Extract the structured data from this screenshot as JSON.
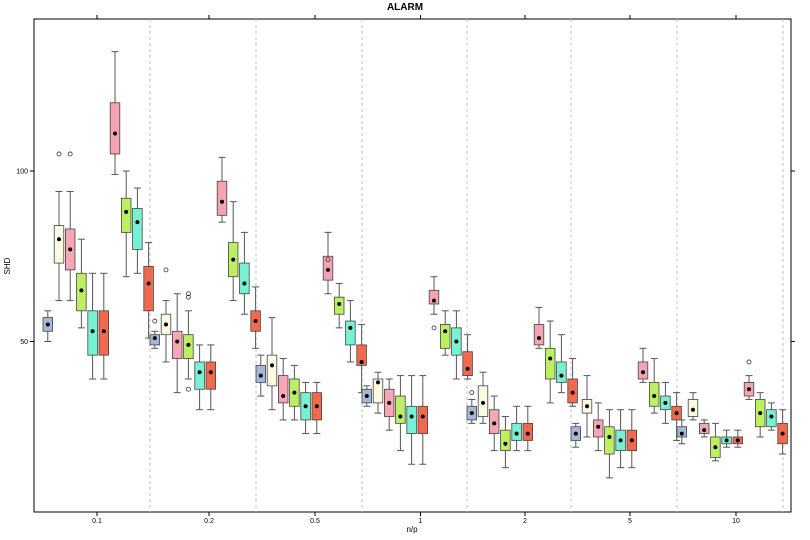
{
  "chart_data": {
    "type": "boxplot",
    "title": "ALARM",
    "xlabel": "n/p",
    "ylabel": "SHD",
    "ylim": [
      0,
      140
    ],
    "y_ticks": [
      50,
      100
    ],
    "categories": [
      "0.1",
      "0.2",
      "0.5",
      "1",
      "2",
      "5",
      "10"
    ],
    "grid": "vertical dashed separators",
    "series_colors": [
      "#a4b8d8",
      "#fbfbe4",
      "#f7a6b6",
      "#bdef62",
      "#76f2d2",
      "#f26a4e"
    ],
    "highlight_color": "#f3a3b2",
    "groups": [
      {
        "category": "0.1",
        "boxes": [
          {
            "color": "#a4b8d8",
            "whisker_low": 50,
            "q1": 53,
            "median": 55,
            "q3": 57,
            "whisker_high": 59,
            "mean": 55,
            "outliers": []
          },
          {
            "color": "#fbfbe4",
            "whisker_low": 62,
            "q1": 73,
            "median": 80,
            "q3": 84,
            "whisker_high": 94,
            "mean": 80,
            "outliers": [
              105
            ]
          },
          {
            "color": "#f7a6b6",
            "whisker_low": 62,
            "q1": 71,
            "median": 78,
            "q3": 83,
            "whisker_high": 94,
            "mean": 77,
            "outliers": [
              105
            ]
          },
          {
            "color": "#bdef62",
            "whisker_low": 54,
            "q1": 59,
            "median": 65,
            "q3": 70,
            "whisker_high": 80,
            "mean": 65,
            "outliers": []
          },
          {
            "color": "#76f2d2",
            "whisker_low": 39,
            "q1": 46,
            "median": 54,
            "q3": 59,
            "whisker_high": 70,
            "mean": 53,
            "outliers": []
          },
          {
            "color": "#f26a4e",
            "whisker_low": 39,
            "q1": 46,
            "median": 54,
            "q3": 59,
            "whisker_high": 70,
            "mean": 53,
            "outliers": []
          },
          {
            "color": "#f3a3b2",
            "whisker_low": 99,
            "q1": 105,
            "median": 111,
            "q3": 120,
            "whisker_high": 135,
            "mean": 111,
            "outliers": []
          },
          {
            "color": "#bdef62",
            "whisker_low": 69,
            "q1": 82,
            "median": 88,
            "q3": 92,
            "whisker_high": 100,
            "mean": 88,
            "outliers": []
          },
          {
            "color": "#76f2d2",
            "whisker_low": 70,
            "q1": 77,
            "median": 85,
            "q3": 89,
            "whisker_high": 95,
            "mean": 85,
            "outliers": []
          },
          {
            "color": "#f26a4e",
            "whisker_low": 51,
            "q1": 59,
            "median": 67,
            "q3": 72,
            "whisker_high": 79,
            "mean": 67,
            "outliers": []
          }
        ]
      },
      {
        "category": "0.2",
        "boxes": [
          {
            "color": "#a4b8d8",
            "whisker_low": 48,
            "q1": 49,
            "median": 51,
            "q3": 52,
            "whisker_high": 53,
            "mean": 51,
            "outliers": [
              56
            ]
          },
          {
            "color": "#fbfbe4",
            "whisker_low": 44,
            "q1": 52,
            "median": 54,
            "q3": 58,
            "whisker_high": 62,
            "mean": 55,
            "outliers": [
              71
            ]
          },
          {
            "color": "#f7a6b6",
            "whisker_low": 35,
            "q1": 45,
            "median": 50,
            "q3": 53,
            "whisker_high": 64,
            "mean": 50,
            "outliers": []
          },
          {
            "color": "#bdef62",
            "whisker_low": 39,
            "q1": 45,
            "median": 49,
            "q3": 52,
            "whisker_high": 59,
            "mean": 49,
            "outliers": [
              36,
              63,
              64
            ]
          },
          {
            "color": "#76f2d2",
            "whisker_low": 30,
            "q1": 36,
            "median": 41,
            "q3": 44,
            "whisker_high": 49,
            "mean": 41,
            "outliers": []
          },
          {
            "color": "#f26a4e",
            "whisker_low": 30,
            "q1": 36,
            "median": 41,
            "q3": 44,
            "whisker_high": 49,
            "mean": 41,
            "outliers": []
          },
          {
            "color": "#f3a3b2",
            "whisker_low": 85,
            "q1": 87,
            "median": 92,
            "q3": 97,
            "whisker_high": 104,
            "mean": 91,
            "outliers": []
          },
          {
            "color": "#bdef62",
            "whisker_low": 62,
            "q1": 69,
            "median": 74,
            "q3": 79,
            "whisker_high": 91,
            "mean": 74,
            "outliers": []
          },
          {
            "color": "#76f2d2",
            "whisker_low": 58,
            "q1": 64,
            "median": 67,
            "q3": 73,
            "whisker_high": 82,
            "mean": 67,
            "outliers": []
          },
          {
            "color": "#f26a4e",
            "whisker_low": 48,
            "q1": 53,
            "median": 55,
            "q3": 59,
            "whisker_high": 66,
            "mean": 56,
            "outliers": []
          }
        ]
      },
      {
        "category": "0.5",
        "boxes": [
          {
            "color": "#a4b8d8",
            "whisker_low": 34,
            "q1": 38,
            "median": 40,
            "q3": 43,
            "whisker_high": 46,
            "mean": 40,
            "outliers": []
          },
          {
            "color": "#fbfbe4",
            "whisker_low": 30,
            "q1": 37,
            "median": 43,
            "q3": 46,
            "whisker_high": 57,
            "mean": 43,
            "outliers": []
          },
          {
            "color": "#f7a6b6",
            "whisker_low": 27,
            "q1": 32,
            "median": 35,
            "q3": 40,
            "whisker_high": 45,
            "mean": 34,
            "outliers": []
          },
          {
            "color": "#bdef62",
            "whisker_low": 27,
            "q1": 31,
            "median": 35,
            "q3": 39,
            "whisker_high": 43,
            "mean": 35,
            "outliers": []
          },
          {
            "color": "#76f2d2",
            "whisker_low": 23,
            "q1": 27,
            "median": 31,
            "q3": 35,
            "whisker_high": 38,
            "mean": 31,
            "outliers": []
          },
          {
            "color": "#f26a4e",
            "whisker_low": 23,
            "q1": 27,
            "median": 31,
            "q3": 35,
            "whisker_high": 38,
            "mean": 31,
            "outliers": []
          },
          {
            "color": "#f3a3b2",
            "whisker_low": 64,
            "q1": 68,
            "median": 71,
            "q3": 75,
            "whisker_high": 82,
            "mean": 71,
            "outliers": [
              74
            ]
          },
          {
            "color": "#bdef62",
            "whisker_low": 54,
            "q1": 58,
            "median": 61,
            "q3": 63,
            "whisker_high": 67,
            "mean": 61,
            "outliers": []
          },
          {
            "color": "#76f2d2",
            "whisker_low": 44,
            "q1": 49,
            "median": 54,
            "q3": 56,
            "whisker_high": 62,
            "mean": 54,
            "outliers": []
          },
          {
            "color": "#f26a4e",
            "whisker_low": 35,
            "q1": 43,
            "median": 45,
            "q3": 49,
            "whisker_high": 55,
            "mean": 44,
            "outliers": []
          }
        ]
      },
      {
        "category": "1",
        "boxes": [
          {
            "color": "#a4b8d8",
            "whisker_low": 31,
            "q1": 32,
            "median": 34,
            "q3": 36,
            "whisker_high": 37,
            "mean": 34,
            "outliers": []
          },
          {
            "color": "#fbfbe4",
            "whisker_low": 29,
            "q1": 32,
            "median": 38,
            "q3": 39,
            "whisker_high": 41,
            "mean": 38,
            "outliers": []
          },
          {
            "color": "#f7a6b6",
            "whisker_low": 24,
            "q1": 28,
            "median": 32,
            "q3": 36,
            "whisker_high": 39,
            "mean": 32,
            "outliers": []
          },
          {
            "color": "#bdef62",
            "whisker_low": 18,
            "q1": 26,
            "median": 28,
            "q3": 34,
            "whisker_high": 40,
            "mean": 28,
            "outliers": []
          },
          {
            "color": "#76f2d2",
            "whisker_low": 14,
            "q1": 23,
            "median": 28,
            "q3": 31,
            "whisker_high": 40,
            "mean": 28,
            "outliers": []
          },
          {
            "color": "#f26a4e",
            "whisker_low": 14,
            "q1": 23,
            "median": 28,
            "q3": 31,
            "whisker_high": 40,
            "mean": 28,
            "outliers": []
          },
          {
            "color": "#f3a3b2",
            "whisker_low": 58,
            "q1": 61,
            "median": 62,
            "q3": 65,
            "whisker_high": 69,
            "mean": 62,
            "outliers": [
              54
            ]
          },
          {
            "color": "#bdef62",
            "whisker_low": 46,
            "q1": 48,
            "median": 52,
            "q3": 55,
            "whisker_high": 59,
            "mean": 53,
            "outliers": []
          },
          {
            "color": "#76f2d2",
            "whisker_low": 39,
            "q1": 46,
            "median": 51,
            "q3": 54,
            "whisker_high": 59,
            "mean": 50,
            "outliers": []
          },
          {
            "color": "#f26a4e",
            "whisker_low": 39,
            "q1": 40,
            "median": 42,
            "q3": 47,
            "whisker_high": 52,
            "mean": 42,
            "outliers": []
          }
        ]
      },
      {
        "category": "2",
        "boxes": [
          {
            "color": "#a4b8d8",
            "whisker_low": 26,
            "q1": 27,
            "median": 29,
            "q3": 31,
            "whisker_high": 33,
            "mean": 29,
            "outliers": [
              35
            ]
          },
          {
            "color": "#fbfbe4",
            "whisker_low": 26,
            "q1": 28,
            "median": 31,
            "q3": 37,
            "whisker_high": 41,
            "mean": 32,
            "outliers": []
          },
          {
            "color": "#f7a6b6",
            "whisker_low": 18,
            "q1": 23,
            "median": 26,
            "q3": 30,
            "whisker_high": 34,
            "mean": 26,
            "outliers": []
          },
          {
            "color": "#bdef62",
            "whisker_low": 13,
            "q1": 18,
            "median": 21,
            "q3": 24,
            "whisker_high": 28,
            "mean": 20,
            "outliers": []
          },
          {
            "color": "#76f2d2",
            "whisker_low": 18,
            "q1": 21,
            "median": 23,
            "q3": 26,
            "whisker_high": 31,
            "mean": 23,
            "outliers": []
          },
          {
            "color": "#f26a4e",
            "whisker_low": 18,
            "q1": 21,
            "median": 23,
            "q3": 26,
            "whisker_high": 31,
            "mean": 23,
            "outliers": []
          },
          {
            "color": "#f3a3b2",
            "whisker_low": 48,
            "q1": 49,
            "median": 52,
            "q3": 55,
            "whisker_high": 60,
            "mean": 51,
            "outliers": []
          },
          {
            "color": "#bdef62",
            "whisker_low": 32,
            "q1": 39,
            "median": 46,
            "q3": 48,
            "whisker_high": 56,
            "mean": 45,
            "outliers": []
          },
          {
            "color": "#76f2d2",
            "whisker_low": 35,
            "q1": 38,
            "median": 41,
            "q3": 44,
            "whisker_high": 52,
            "mean": 40,
            "outliers": []
          },
          {
            "color": "#f26a4e",
            "whisker_low": 31,
            "q1": 32,
            "median": 36,
            "q3": 39,
            "whisker_high": 45,
            "mean": 35,
            "outliers": []
          }
        ]
      },
      {
        "category": "5",
        "boxes": [
          {
            "color": "#a4b8d8",
            "whisker_low": 19,
            "q1": 21,
            "median": 23,
            "q3": 25,
            "whisker_high": 26,
            "mean": 23,
            "outliers": []
          },
          {
            "color": "#fbfbe4",
            "whisker_low": 22,
            "q1": 29,
            "median": 31,
            "q3": 33,
            "whisker_high": 40,
            "mean": 31,
            "outliers": []
          },
          {
            "color": "#f7a6b6",
            "whisker_low": 18,
            "q1": 22,
            "median": 25,
            "q3": 27,
            "whisker_high": 32,
            "mean": 25,
            "outliers": []
          },
          {
            "color": "#bdef62",
            "whisker_low": 10,
            "q1": 17,
            "median": 22,
            "q3": 25,
            "whisker_high": 30,
            "mean": 22,
            "outliers": []
          },
          {
            "color": "#76f2d2",
            "whisker_low": 13,
            "q1": 18,
            "median": 21,
            "q3": 24,
            "whisker_high": 30,
            "mean": 21,
            "outliers": []
          },
          {
            "color": "#f26a4e",
            "whisker_low": 13,
            "q1": 18,
            "median": 21,
            "q3": 24,
            "whisker_high": 30,
            "mean": 21,
            "outliers": []
          },
          {
            "color": "#f3a3b2",
            "whisker_low": 38,
            "q1": 39,
            "median": 41,
            "q3": 44,
            "whisker_high": 48,
            "mean": 41,
            "outliers": []
          },
          {
            "color": "#bdef62",
            "whisker_low": 29,
            "q1": 31,
            "median": 34,
            "q3": 38,
            "whisker_high": 45,
            "mean": 34,
            "outliers": []
          },
          {
            "color": "#76f2d2",
            "whisker_low": 26,
            "q1": 30,
            "median": 32,
            "q3": 34,
            "whisker_high": 38,
            "mean": 32,
            "outliers": []
          },
          {
            "color": "#f26a4e",
            "whisker_low": 21,
            "q1": 27,
            "median": 29,
            "q3": 31,
            "whisker_high": 35,
            "mean": 29,
            "outliers": []
          }
        ]
      },
      {
        "category": "10",
        "boxes": [
          {
            "color": "#a4b8d8",
            "whisker_low": 20,
            "q1": 22,
            "median": 23,
            "q3": 25,
            "whisker_high": 27,
            "mean": 23,
            "outliers": []
          },
          {
            "color": "#fbfbe4",
            "whisker_low": 27,
            "q1": 28,
            "median": 30,
            "q3": 33,
            "whisker_high": 35,
            "mean": 30,
            "outliers": []
          },
          {
            "color": "#f7a6b6",
            "whisker_low": 22,
            "q1": 23,
            "median": 24,
            "q3": 26,
            "whisker_high": 27,
            "mean": 24,
            "outliers": []
          },
          {
            "color": "#bdef62",
            "whisker_low": 15,
            "q1": 16,
            "median": 19,
            "q3": 22,
            "whisker_high": 26,
            "mean": 19,
            "outliers": []
          },
          {
            "color": "#76f2d2",
            "whisker_low": 19,
            "q1": 20,
            "median": 21,
            "q3": 22,
            "whisker_high": 24,
            "mean": 21,
            "outliers": []
          },
          {
            "color": "#f26a4e",
            "whisker_low": 19,
            "q1": 20,
            "median": 21,
            "q3": 22,
            "whisker_high": 24,
            "mean": 21,
            "outliers": []
          },
          {
            "color": "#f3a3b2",
            "whisker_low": 33,
            "q1": 34,
            "median": 36,
            "q3": 38,
            "whisker_high": 40,
            "mean": 36,
            "outliers": [
              44
            ]
          },
          {
            "color": "#bdef62",
            "whisker_low": 22,
            "q1": 25,
            "median": 28,
            "q3": 33,
            "whisker_high": 35,
            "mean": 29,
            "outliers": []
          },
          {
            "color": "#76f2d2",
            "whisker_low": 24,
            "q1": 25,
            "median": 28,
            "q3": 30,
            "whisker_high": 32,
            "mean": 28,
            "outliers": []
          },
          {
            "color": "#f26a4e",
            "whisker_low": 17,
            "q1": 20,
            "median": 23,
            "q3": 26,
            "whisker_high": 30,
            "mean": 23,
            "outliers": []
          }
        ]
      }
    ]
  }
}
